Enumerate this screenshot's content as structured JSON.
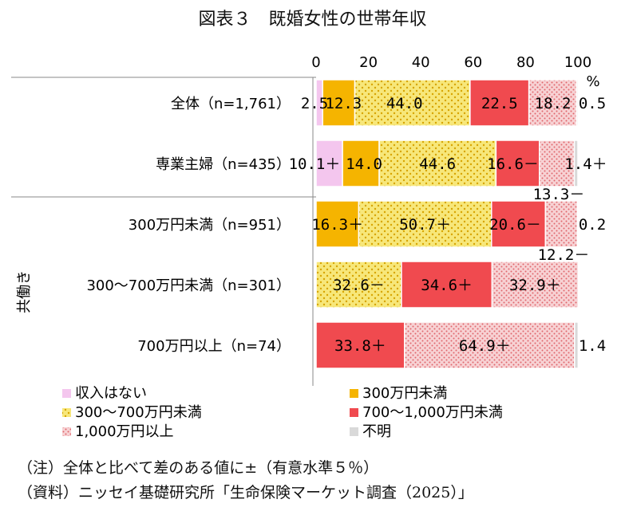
{
  "title": "図表３　既婚女性の世帯年収",
  "notes": {
    "note": "（注）全体と比べて差のある値に±（有意水準５％）",
    "source": "（資料）ニッセイ基礎研究所「生命保険マーケット調査（2025）」"
  },
  "colors": {
    "収入はない": "#f4c6ee",
    "300万円未満": "#f5b400",
    "300～700万円未満": "#f6dd4c",
    "700～1,000万円未満": "#f04a4f",
    "1,000万円以上": "#f1bcbf",
    "不明": "#d9d9d9"
  },
  "chart_data": {
    "type": "bar",
    "orientation": "horizontal-stacked-percent",
    "x_ticks": [
      "0",
      "20",
      "40",
      "60",
      "80",
      "100"
    ],
    "x_unit": "%",
    "xlim": [
      0,
      100
    ],
    "group_label": "共働き",
    "categories": [
      "全体（n=1,761）",
      "専業主婦（n=435）",
      "300万円未満（n=951）",
      "300～700万円未満（n=301）",
      "700万円以上（n=74）"
    ],
    "series": [
      {
        "name": "収入はない",
        "values": [
          2.5,
          10.1,
          0,
          0,
          0
        ]
      },
      {
        "name": "300万円未満",
        "values": [
          12.3,
          14.0,
          16.3,
          0,
          0
        ]
      },
      {
        "name": "300～700万円未満",
        "values": [
          44.0,
          44.6,
          50.7,
          32.6,
          0
        ]
      },
      {
        "name": "700～1,000万円未満",
        "values": [
          22.5,
          16.6,
          20.6,
          34.6,
          33.8
        ]
      },
      {
        "name": "1,000万円以上",
        "values": [
          18.2,
          13.3,
          12.2,
          32.9,
          64.9
        ]
      },
      {
        "name": "不明",
        "values": [
          0.5,
          1.4,
          0.2,
          0,
          1.4
        ]
      }
    ],
    "value_labels": [
      [
        "2.5",
        "12.3",
        "44.0",
        "22.5",
        "18.2",
        "0.5"
      ],
      [
        "10.1＋",
        "14.0",
        "44.6",
        "16.6－",
        "13.3－",
        "1.4＋"
      ],
      [
        "",
        "16.3＋",
        "50.7＋",
        "20.6－",
        "12.2－",
        "0.2"
      ],
      [
        "",
        "",
        "32.6－",
        "34.6＋",
        "32.9＋",
        ""
      ],
      [
        "",
        "",
        "",
        "33.8＋",
        "64.9＋",
        "1.4"
      ]
    ],
    "legend": [
      "収入はない",
      "300万円未満",
      "300～700万円未満",
      "700～1,000万円未満",
      "1,000万円以上",
      "不明"
    ],
    "legend_position": "bottom"
  }
}
